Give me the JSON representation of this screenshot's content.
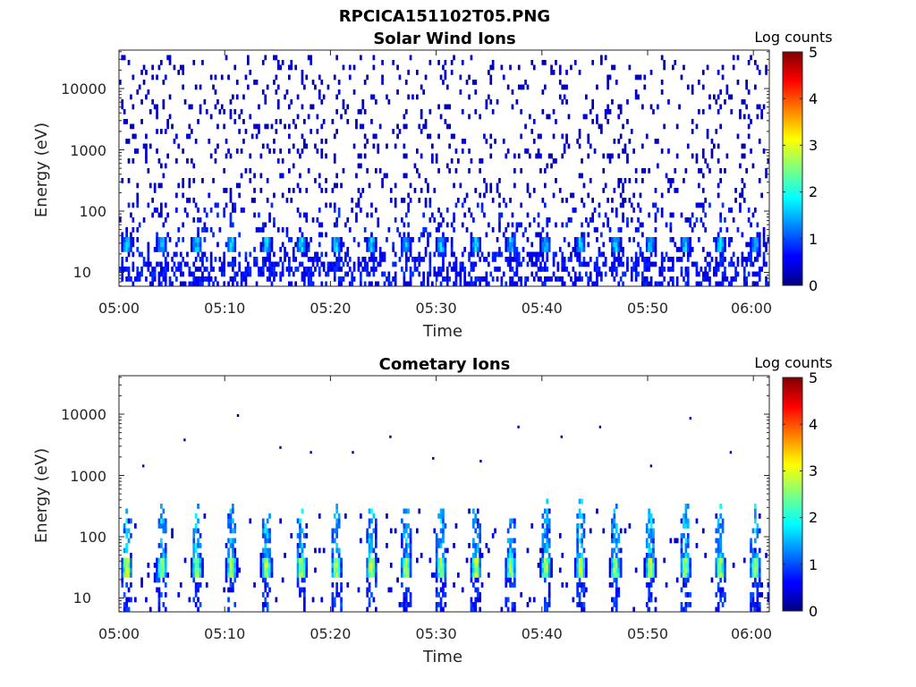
{
  "figure_title": "RPCICA151102T05.PNG",
  "chart_data": [
    {
      "type": "heatmap",
      "title": "Solar Wind Ions",
      "xlabel": "Time",
      "ylabel": "Energy (eV)",
      "x_ticks": [
        "05:00",
        "05:10",
        "05:20",
        "05:30",
        "05:40",
        "05:50",
        "06:00"
      ],
      "x_range_minutes": [
        0,
        61.5
      ],
      "y_ticks": [
        "10",
        "100",
        "1000",
        "10000"
      ],
      "y_scale": "log",
      "y_range_eV": [
        5.5,
        45000
      ],
      "colorbar": {
        "label": "Log counts",
        "ticks": [
          "0",
          "1",
          "2",
          "3",
          "4",
          "5"
        ],
        "range": [
          0,
          5
        ],
        "colormap": "jet"
      },
      "features": {
        "background_noise": "sparse low-count pixels (log counts ~0-0.5) from ~10 eV to ~30000 eV across whole interval",
        "band_energy_eV": 28,
        "band_log_counts_peak": 1.8,
        "band_period_minutes": 3.3
      }
    },
    {
      "type": "heatmap",
      "title": "Cometary Ions",
      "xlabel": "Time",
      "ylabel": "Energy (eV)",
      "x_ticks": [
        "05:00",
        "05:10",
        "05:20",
        "05:30",
        "05:40",
        "05:50",
        "06:00"
      ],
      "x_range_minutes": [
        0,
        61.5
      ],
      "y_ticks": [
        "10",
        "100",
        "1000",
        "10000"
      ],
      "y_scale": "log",
      "y_range_eV": [
        5.5,
        45000
      ],
      "colorbar": {
        "label": "Log counts",
        "ticks": [
          "0",
          "1",
          "2",
          "3",
          "4",
          "5"
        ],
        "range": [
          0,
          5
        ],
        "colormap": "jet"
      },
      "features": {
        "band_energy_eV": 30,
        "band_log_counts_peak": 3.0,
        "band_period_minutes": 3.3,
        "plume_energy_max_eV": 500,
        "isolated_high_energy_points_eV": [
          1500,
          4000,
          10000,
          3000,
          2500,
          2500,
          4500,
          2000,
          1800,
          6500,
          4500,
          6500,
          1500,
          9000,
          2500
        ]
      }
    }
  ]
}
